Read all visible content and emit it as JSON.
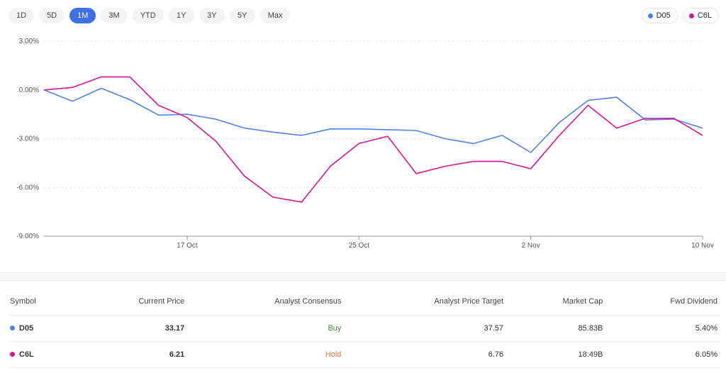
{
  "ranges": [
    "1D",
    "5D",
    "1M",
    "3M",
    "YTD",
    "1Y",
    "3Y",
    "5Y",
    "Max"
  ],
  "active_range": "1M",
  "legend": [
    {
      "label": "D05",
      "color": "#4f82e6"
    },
    {
      "label": "C6L",
      "color": "#d6178f"
    }
  ],
  "chart_data": {
    "type": "line",
    "title": "",
    "xlabel": "",
    "ylabel": "",
    "ylim": [
      -9,
      3
    ],
    "yticks": [
      3,
      0,
      -3,
      -6,
      -9
    ],
    "ytick_labels": [
      "3.00%",
      "0.00%",
      "-3.00%",
      "-6.00%",
      "-9.00%"
    ],
    "x": [
      "11 Oct",
      "12 Oct",
      "13 Oct",
      "14 Oct",
      "16 Oct",
      "17 Oct",
      "18 Oct",
      "19 Oct",
      "20 Oct",
      "23 Oct",
      "24 Oct",
      "25 Oct",
      "26 Oct",
      "27 Oct",
      "30 Oct",
      "31 Oct",
      "1 Nov",
      "2 Nov",
      "3 Nov",
      "6 Nov",
      "7 Nov",
      "8 Nov",
      "9 Nov",
      "10 Nov"
    ],
    "xtick_labels": [
      "17 Oct",
      "25 Oct",
      "2 Nov",
      "10 Nov"
    ],
    "grid": true,
    "series": [
      {
        "name": "D05",
        "color": "#4f82e6",
        "values": [
          0.0,
          -0.7,
          0.1,
          -0.6,
          -1.55,
          -1.5,
          -1.8,
          -2.35,
          -2.6,
          -2.8,
          -2.4,
          -2.4,
          -2.45,
          -2.5,
          -3.0,
          -3.3,
          -2.8,
          -3.85,
          -2.0,
          -0.65,
          -0.45,
          -1.85,
          -1.8,
          -2.35
        ]
      },
      {
        "name": "C6L",
        "color": "#d6178f",
        "values": [
          0.0,
          0.15,
          0.8,
          0.8,
          -0.95,
          -1.7,
          -3.15,
          -5.3,
          -6.6,
          -6.9,
          -4.7,
          -3.3,
          -2.85,
          -5.15,
          -4.7,
          -4.4,
          -4.4,
          -4.85,
          -2.8,
          -0.95,
          -2.35,
          -1.75,
          -1.75,
          -2.8
        ]
      }
    ]
  },
  "table": {
    "headers": [
      "Symbol",
      "Current Price",
      "Analyst Consensus",
      "Analyst Price Target",
      "Market Cap",
      "Fwd Dividend"
    ],
    "rows": [
      {
        "symbol": "D05",
        "color": "#4f82e6",
        "price": "33.17",
        "consensus": "Buy",
        "consensus_color": "#3d8b2f",
        "target": "37.57",
        "market_cap": "85.83B",
        "dividend": "5.40%"
      },
      {
        "symbol": "C6L",
        "color": "#d6178f",
        "price": "6.21",
        "consensus": "Hold",
        "consensus_color": "#e8743b",
        "target": "6.76",
        "market_cap": "18.49B",
        "dividend": "6.05%"
      }
    ]
  }
}
